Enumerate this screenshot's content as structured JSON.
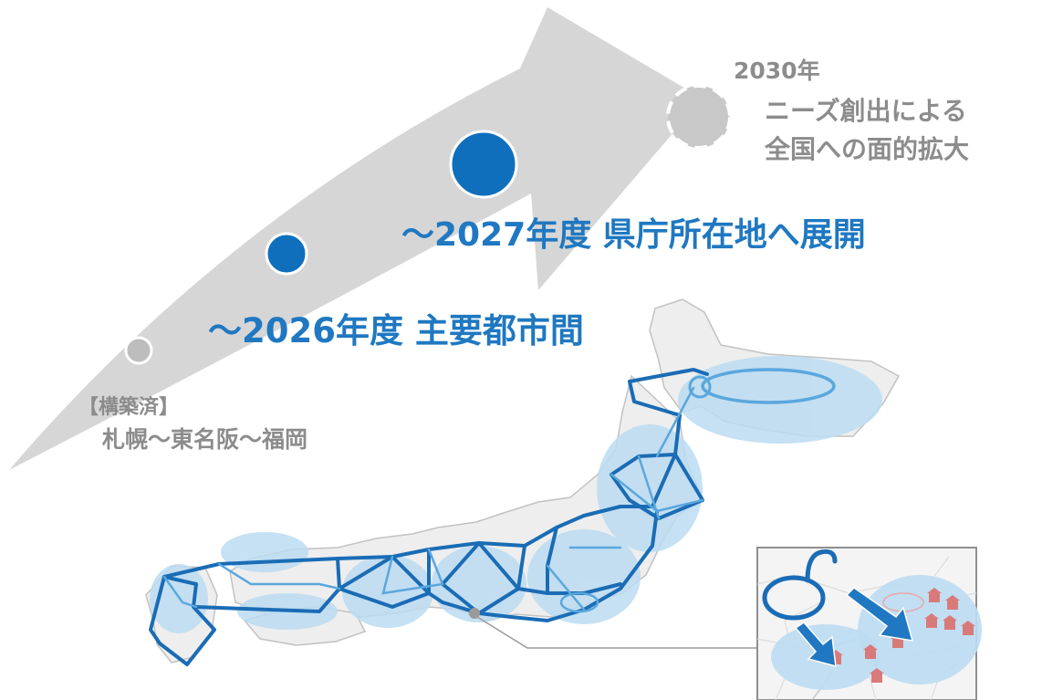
{
  "colors": {
    "arrow": "#d6d6d6",
    "accent_blue": "#1f78c1",
    "dot_blue": "#0f6fbd",
    "network_line": "#1a6cb5",
    "region_fill": "#bcdcf2",
    "land": "#eeeeee",
    "coast": "#c2c2c2",
    "gray_text": "#8c8c8c",
    "gray_dot": "#bdbdbd"
  },
  "milestones": {
    "built": {
      "line1": "【構築済】",
      "line2": "札幌～東名阪～福岡"
    },
    "y2026": {
      "label": "～2026年度 主要都市間"
    },
    "y2027": {
      "label": "～2027年度 県庁所在地へ展開"
    },
    "y2030": {
      "year": "2030年",
      "line1": "ニーズ創出による",
      "line2": "全国への面的拡大"
    }
  },
  "icons": {
    "built_dot": "small-gray-circle",
    "dot_2026": "blue-circle",
    "dot_2027": "large-blue-circle",
    "dot_2030": "dashed-gray-circle",
    "inset_arrows": "down-right-arrow",
    "inset_buildings": "building-icon"
  }
}
